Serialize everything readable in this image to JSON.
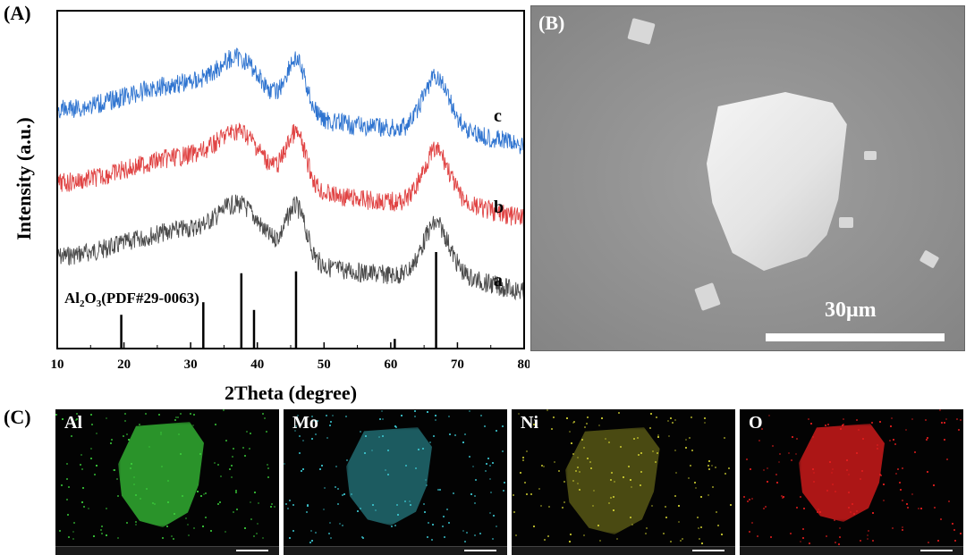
{
  "panels": {
    "a_label": "(A)",
    "b_label": "(B)",
    "c_label": "(C)"
  },
  "chart_data": {
    "type": "line",
    "xlabel": "2Theta (degree)",
    "ylabel": "Intensity (a.u.)",
    "xlim": [
      10,
      80
    ],
    "xticks": [
      10,
      20,
      30,
      40,
      50,
      60,
      70,
      80
    ],
    "grid": false,
    "series": [
      {
        "name": "a",
        "color": "#4a4a4a",
        "peaks": [
          37,
          46,
          67
        ]
      },
      {
        "name": "b",
        "color": "#e04444",
        "peaks": [
          37,
          46,
          67
        ]
      },
      {
        "name": "c",
        "color": "#2f74d0",
        "peaks": [
          37,
          46,
          67
        ]
      }
    ],
    "reference": {
      "label": "Al2O3(PDF#29-0063)",
      "label_main": "Al",
      "label_sub1": "2",
      "label_mid": "O",
      "label_sub2": "3",
      "label_tail": "(PDF#29-0063)",
      "lines": [
        {
          "x": 19.6,
          "h": 0.35
        },
        {
          "x": 31.9,
          "h": 0.48
        },
        {
          "x": 37.6,
          "h": 0.78
        },
        {
          "x": 39.5,
          "h": 0.4
        },
        {
          "x": 45.8,
          "h": 0.8
        },
        {
          "x": 60.6,
          "h": 0.1
        },
        {
          "x": 66.8,
          "h": 1.0
        }
      ]
    }
  },
  "sem": {
    "scale_label": "30μm",
    "colors": {
      "background": "#8f8f8f",
      "particle": "#ececec"
    }
  },
  "edx": [
    {
      "element": "Al",
      "color": "#3cd23c"
    },
    {
      "element": "Mo",
      "color": "#3cc8d2"
    },
    {
      "element": "Ni",
      "color": "#d2d232"
    },
    {
      "element": "O",
      "color": "#e61e1e"
    }
  ]
}
